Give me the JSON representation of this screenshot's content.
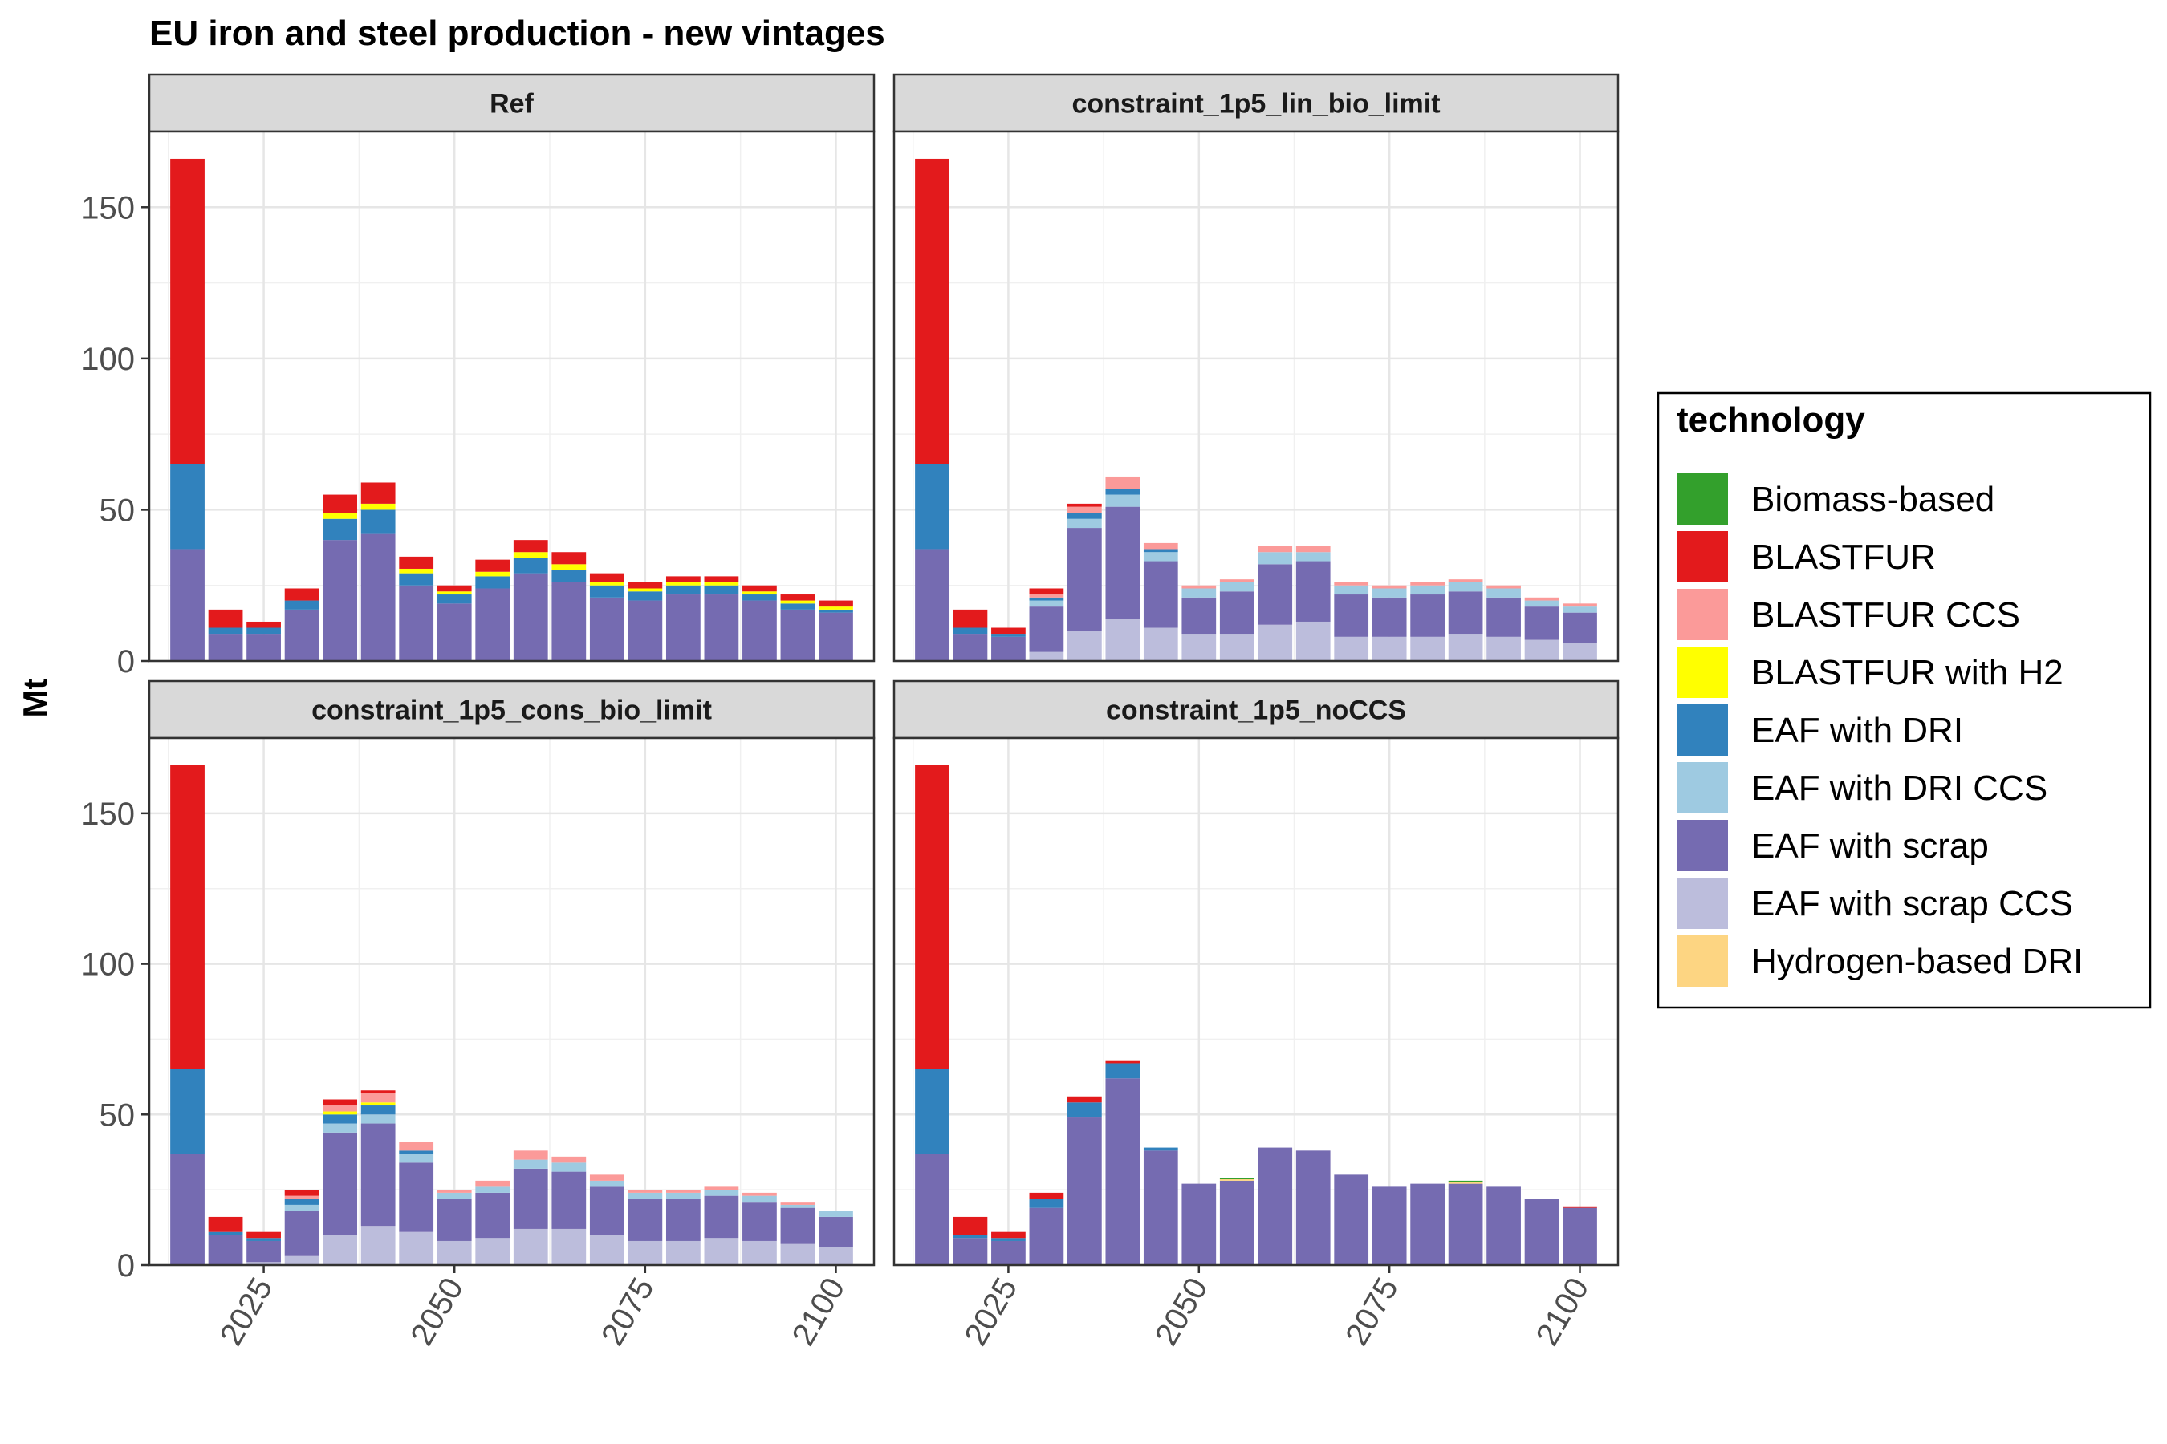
{
  "chart_data": {
    "type": "bar",
    "stacked": true,
    "title": "EU iron and steel production - new vintages",
    "ylabel": "Mt",
    "xlabel": "",
    "ylim": [
      0,
      175
    ],
    "xlim": [
      2010,
      2105
    ],
    "x_ticks": [
      2025,
      2050,
      2075,
      2100
    ],
    "y_ticks": [
      0,
      50,
      100,
      150
    ],
    "grid": true,
    "legend": {
      "title": "technology",
      "placement": "right",
      "entries": [
        {
          "key": "bio",
          "label": "Biomass-based",
          "color": "#33a02c"
        },
        {
          "key": "bf",
          "label": "BLASTFUR",
          "color": "#e31a1c"
        },
        {
          "key": "bfccs",
          "label": "BLASTFUR CCS",
          "color": "#fb9a99"
        },
        {
          "key": "bfh2",
          "label": "BLASTFUR with H2",
          "color": "#ffff00"
        },
        {
          "key": "dri",
          "label": "EAF with DRI",
          "color": "#3182bd"
        },
        {
          "key": "driccs",
          "label": "EAF with DRI CCS",
          "color": "#9ecae1"
        },
        {
          "key": "scrap",
          "label": "EAF with scrap",
          "color": "#756bb1"
        },
        {
          "key": "scrapccs",
          "label": "EAF with scrap CCS",
          "color": "#bcbddc"
        },
        {
          "key": "h2dri",
          "label": "Hydrogen-based DRI",
          "color": "#fdd582"
        }
      ]
    },
    "stack_order": [
      "scrapccs",
      "scrap",
      "driccs",
      "dri",
      "h2dri",
      "bfh2",
      "bfccs",
      "bf",
      "bio"
    ],
    "years": [
      2015,
      2020,
      2025,
      2030,
      2035,
      2040,
      2045,
      2050,
      2055,
      2060,
      2065,
      2070,
      2075,
      2080,
      2085,
      2090,
      2095,
      2100
    ],
    "panels": [
      {
        "name": "Ref",
        "series": {
          "scrapccs": [
            0,
            0,
            0,
            0,
            0,
            0,
            0,
            0,
            0,
            0,
            0,
            0,
            0,
            0,
            0,
            0,
            0,
            0
          ],
          "scrap": [
            37,
            9,
            9,
            17,
            40,
            42,
            25,
            19,
            24,
            29,
            26,
            21,
            20,
            22,
            22,
            20,
            17,
            16
          ],
          "driccs": [
            0,
            0,
            0,
            0,
            0,
            0,
            0,
            0,
            0,
            0,
            0,
            0,
            0,
            0,
            0,
            0,
            0,
            0
          ],
          "dri": [
            28,
            2,
            2,
            3,
            7,
            8,
            4,
            3,
            4,
            5,
            4,
            4,
            3,
            3,
            3,
            2,
            2,
            1
          ],
          "h2dri": [
            0,
            0,
            0,
            0,
            0,
            0,
            0,
            0,
            0,
            0,
            0,
            0,
            0,
            0,
            0,
            0,
            0,
            0
          ],
          "bfh2": [
            0,
            0,
            0,
            0,
            2,
            2,
            1.5,
            1,
            1.5,
            2,
            2,
            1,
            1,
            1,
            1,
            1,
            1,
            1
          ],
          "bfccs": [
            0,
            0,
            0,
            0,
            0,
            0,
            0,
            0,
            0,
            0,
            0,
            0,
            0,
            0,
            0,
            0,
            0,
            0
          ],
          "bf": [
            101,
            6,
            2,
            4,
            6,
            7,
            4,
            2,
            4,
            4,
            4,
            3,
            2,
            2,
            2,
            2,
            2,
            2
          ],
          "bio": [
            0,
            0,
            0,
            0,
            0,
            0,
            0,
            0,
            0,
            0,
            0,
            0,
            0,
            0,
            0,
            0,
            0,
            0
          ]
        }
      },
      {
        "name": "constraint_1p5_lin_bio_limit",
        "series": {
          "scrapccs": [
            0,
            0,
            0,
            3,
            10,
            14,
            11,
            9,
            9,
            12,
            13,
            8,
            8,
            8,
            9,
            8,
            7,
            6
          ],
          "scrap": [
            37,
            9,
            8,
            15,
            34,
            37,
            22,
            12,
            14,
            20,
            20,
            14,
            13,
            14,
            14,
            13,
            11,
            10
          ],
          "driccs": [
            0,
            0,
            0,
            2,
            3,
            4,
            3,
            3,
            3,
            4,
            3,
            3,
            3,
            3,
            3,
            3,
            2,
            2
          ],
          "dri": [
            28,
            2,
            1,
            1,
            2,
            2,
            1,
            0,
            0,
            0,
            0,
            0,
            0,
            0,
            0,
            0,
            0,
            0
          ],
          "h2dri": [
            0,
            0,
            0,
            0,
            0,
            0,
            0,
            0,
            0,
            0,
            0,
            0,
            0,
            0,
            0,
            0,
            0,
            0
          ],
          "bfh2": [
            0,
            0,
            0,
            0,
            0,
            0,
            0,
            0,
            0,
            0,
            0,
            0,
            0,
            0,
            0,
            0,
            0,
            0
          ],
          "bfccs": [
            0,
            0,
            0,
            1,
            2,
            4,
            2,
            1,
            1,
            2,
            2,
            1,
            1,
            1,
            1,
            1,
            1,
            1
          ],
          "bf": [
            101,
            6,
            2,
            2,
            1,
            0,
            0,
            0,
            0,
            0,
            0,
            0,
            0,
            0,
            0,
            0,
            0,
            0
          ],
          "bio": [
            0,
            0,
            0,
            0,
            0,
            0,
            0,
            0,
            0,
            0,
            0,
            0,
            0,
            0,
            0,
            0,
            0,
            0
          ]
        }
      },
      {
        "name": "constraint_1p5_cons_bio_limit",
        "series": {
          "scrapccs": [
            0,
            0,
            1,
            3,
            10,
            13,
            11,
            8,
            9,
            12,
            12,
            10,
            8,
            8,
            9,
            8,
            7,
            6
          ],
          "scrap": [
            37,
            10,
            7,
            15,
            34,
            34,
            23,
            14,
            15,
            20,
            19,
            16,
            14,
            14,
            14,
            13,
            12,
            10
          ],
          "driccs": [
            0,
            0,
            0,
            2,
            3,
            3,
            3,
            2,
            2,
            3,
            3,
            2,
            2,
            2,
            2,
            2,
            1,
            2
          ],
          "dri": [
            28,
            1,
            1,
            2,
            3,
            3,
            1,
            0,
            0,
            0,
            0,
            0,
            0,
            0,
            0,
            0,
            0,
            0
          ],
          "h2dri": [
            0,
            0,
            0,
            0,
            0,
            0,
            0,
            0,
            0,
            0,
            0,
            0,
            0,
            0,
            0,
            0,
            0,
            0
          ],
          "bfh2": [
            0,
            0,
            0,
            0,
            1,
            1,
            0,
            0,
            0,
            0,
            0,
            0,
            0,
            0,
            0,
            0,
            0,
            0
          ],
          "bfccs": [
            0,
            0,
            0,
            1,
            2,
            3,
            3,
            1,
            2,
            3,
            2,
            2,
            1,
            1,
            1,
            1,
            1,
            0
          ],
          "bf": [
            101,
            5,
            2,
            2,
            2,
            1,
            0,
            0,
            0,
            0,
            0,
            0,
            0,
            0,
            0,
            0,
            0,
            0
          ],
          "bio": [
            0,
            0,
            0,
            0,
            0,
            0,
            0,
            0,
            0,
            0,
            0,
            0,
            0,
            0,
            0,
            0,
            0,
            0
          ]
        }
      },
      {
        "name": "constraint_1p5_noCCS",
        "series": {
          "scrapccs": [
            0,
            0,
            0,
            0,
            0,
            0,
            0,
            0,
            0,
            0,
            0,
            0,
            0,
            0,
            0,
            0,
            0,
            0
          ],
          "scrap": [
            37,
            9,
            8,
            19,
            49,
            62,
            38,
            27,
            28,
            39,
            38,
            30,
            26,
            27,
            27,
            26,
            22,
            19
          ],
          "driccs": [
            0,
            0,
            0,
            0,
            0,
            0,
            0,
            0,
            0,
            0,
            0,
            0,
            0,
            0,
            0,
            0,
            0,
            0
          ],
          "dri": [
            28,
            1,
            1,
            3,
            5,
            5,
            1,
            0,
            0,
            0,
            0,
            0,
            0,
            0,
            0,
            0,
            0,
            0
          ],
          "h2dri": [
            0,
            0,
            0,
            0,
            0,
            0,
            0,
            0,
            0.5,
            0,
            0,
            0,
            0,
            0,
            0.5,
            0,
            0,
            0
          ],
          "bfh2": [
            0,
            0,
            0,
            0,
            0,
            0,
            0,
            0,
            0,
            0,
            0,
            0,
            0,
            0,
            0,
            0,
            0,
            0
          ],
          "bfccs": [
            0,
            0,
            0,
            0,
            0,
            0,
            0,
            0,
            0,
            0,
            0,
            0,
            0,
            0,
            0,
            0,
            0,
            0
          ],
          "bf": [
            101,
            6,
            2,
            2,
            2,
            1,
            0,
            0,
            0,
            0,
            0,
            0,
            0,
            0,
            0,
            0,
            0,
            0.5
          ],
          "bio": [
            0,
            0,
            0,
            0,
            0,
            0,
            0,
            0,
            0.5,
            0,
            0,
            0,
            0,
            0,
            0.5,
            0,
            0,
            0
          ]
        }
      }
    ]
  }
}
